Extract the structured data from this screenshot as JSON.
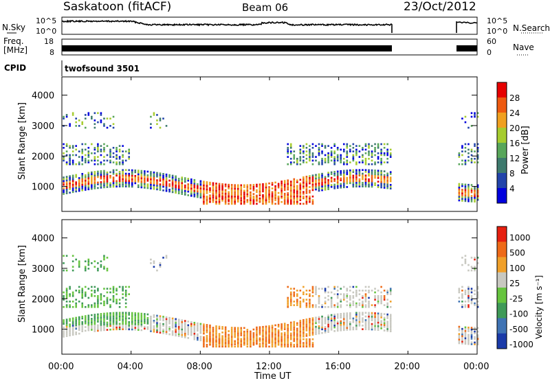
{
  "header": {
    "station": "Saskatoon (fitACF)",
    "beam": "Beam 06",
    "date": "23/Oct/2012"
  },
  "noise_panel": {
    "left_label": "N.Sky",
    "right_label": "N.Search",
    "left_ticks": [
      "10^5",
      "10^0"
    ],
    "right_ticks": [
      "10^5",
      "10^0"
    ]
  },
  "freq_panel": {
    "left_label_line1": "Freq.",
    "left_label_line2": "[MHz]",
    "right_label": "Nave",
    "left_ticks": [
      "18",
      "8"
    ],
    "right_ticks": [
      "60",
      "0"
    ]
  },
  "cpid_panel": {
    "label": "CPID",
    "program": "twofsound 3501"
  },
  "x_axis": {
    "label": "Time UT",
    "ticks": [
      "00:00",
      "04:00",
      "08:00",
      "12:00",
      "16:00",
      "20:00",
      "00:00"
    ],
    "range_hours": [
      0,
      24
    ]
  },
  "chart_data": [
    {
      "type": "heatmap",
      "name": "Power",
      "ylabel": "Slant Range [km]",
      "yticks": [
        "1000",
        "2000",
        "3000",
        "4000"
      ],
      "ylim": [
        180,
        4600
      ],
      "colorbar_label": "Power [dB]",
      "colorbar_ticks": [
        "4",
        "8",
        "12",
        "16",
        "20",
        "24",
        "28"
      ],
      "colors": [
        "#0000dd",
        "#2244aa",
        "#3e7a6e",
        "#58a65a",
        "#a6cc2e",
        "#f0a020",
        "#ee5a10",
        "#e60000"
      ],
      "data_gaps_hours": [
        [
          19.0,
          22.8
        ]
      ]
    },
    {
      "type": "heatmap",
      "name": "Velocity",
      "ylabel": "Slant Range [km]",
      "yticks": [
        "1000",
        "2000",
        "3000",
        "4000"
      ],
      "ylim": [
        180,
        4600
      ],
      "colorbar_label": "Velocity [m s⁻¹]",
      "colorbar_ticks": [
        "1000",
        "500",
        "100",
        "25",
        "-25",
        "-100",
        "-500",
        "-1000"
      ],
      "colors": [
        "#1a3aa8",
        "#3f73b4",
        "#3f9a58",
        "#66c43e",
        "#c8c8c0",
        "#f0a02a",
        "#ee6a18",
        "#e62010"
      ],
      "data_gaps_hours": [
        [
          19.0,
          22.8
        ]
      ]
    }
  ]
}
